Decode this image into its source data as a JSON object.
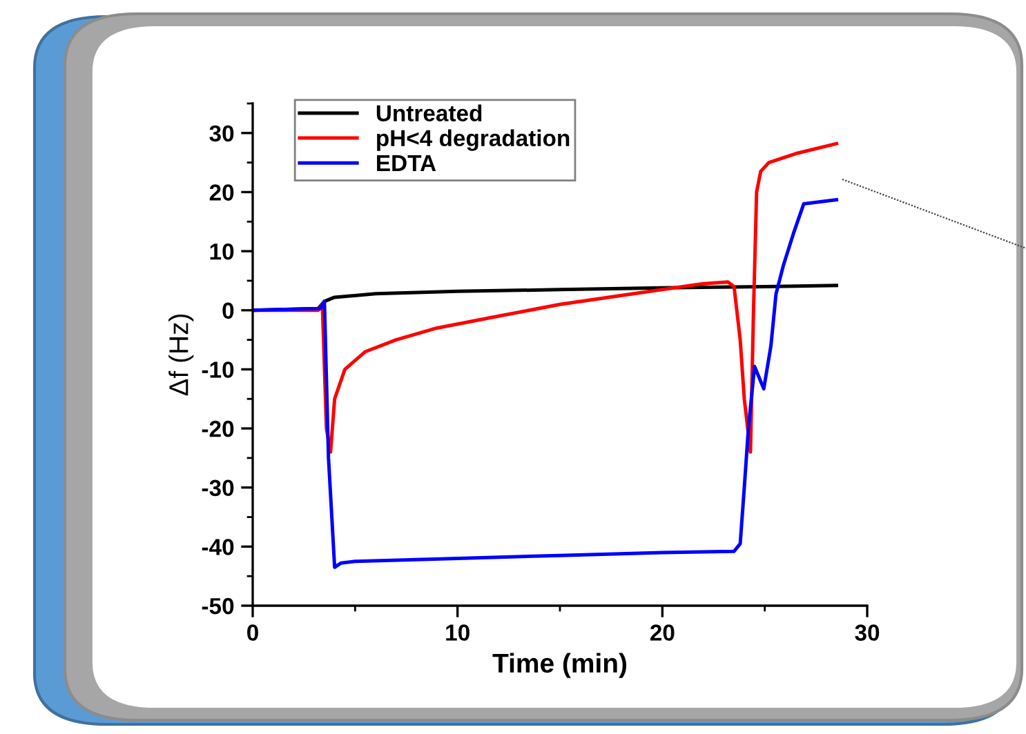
{
  "chart_data": {
    "type": "line",
    "xlabel": "Time (min)",
    "ylabel": "Δf (Hz)",
    "xlim": [
      0,
      30
    ],
    "ylim": [
      -50,
      35
    ],
    "xticks": [
      0,
      {
        "value": 5,
        "label": null
      },
      10,
      {
        "value": 15,
        "label": null
      },
      20,
      {
        "value": 25,
        "label": null
      },
      30
    ],
    "yticks": [
      -50,
      {
        "value": -45,
        "label": null
      },
      -40,
      {
        "value": -35,
        "label": null
      },
      -30,
      {
        "value": -25,
        "label": null
      },
      -20,
      {
        "value": -15,
        "label": null
      },
      -10,
      {
        "value": -5,
        "label": null
      },
      0,
      {
        "value": 5,
        "label": null
      },
      10,
      {
        "value": 15,
        "label": null
      },
      20,
      {
        "value": 25,
        "label": null
      },
      30,
      {
        "value": 35,
        "label": null
      }
    ],
    "legend": "top left",
    "grid": false,
    "marker": "none",
    "line_style": "solid",
    "series": [
      {
        "name": "Untreated",
        "color": "#000000",
        "x": [
          0,
          3.2,
          3.5,
          4,
          6,
          10,
          15,
          20,
          25,
          28.5
        ],
        "values": [
          0,
          0.3,
          1.5,
          2.2,
          2.8,
          3.2,
          3.5,
          3.8,
          4,
          4.2
        ]
      },
      {
        "name": "pH<4 degradation",
        "color": "#ff0000",
        "x": [
          0,
          3.2,
          3.4,
          3.6,
          3.8,
          4,
          4.5,
          5.5,
          7,
          9,
          12,
          15,
          19,
          22,
          23.2,
          23.5,
          23.8,
          24.0,
          24.3,
          24.45,
          24.6,
          24.8,
          25.2,
          26.5,
          28.5
        ],
        "values": [
          0,
          0,
          1,
          -20,
          -24,
          -15,
          -10,
          -7,
          -5,
          -3,
          -1,
          1,
          3,
          4.5,
          4.8,
          4,
          -5,
          -15,
          -24,
          0,
          20,
          23.5,
          25,
          26.5,
          28.2
        ]
      },
      {
        "name": "EDTA",
        "color": "#0000ff",
        "x": [
          0,
          3.3,
          3.5,
          3.7,
          4.0,
          4.3,
          5,
          10,
          15,
          20,
          23.5,
          23.8,
          24.0,
          24.2,
          24.5,
          24.95,
          25.3,
          25.55,
          25.9,
          26.4,
          26.9,
          28.5
        ],
        "values": [
          0,
          0.3,
          1.5,
          -25,
          -43.5,
          -42.8,
          -42.5,
          -42,
          -41.5,
          -41,
          -40.8,
          -39.5,
          -30,
          -20,
          -9.5,
          -13.3,
          -6,
          2.8,
          7.5,
          13,
          18,
          18.7
        ]
      }
    ]
  }
}
